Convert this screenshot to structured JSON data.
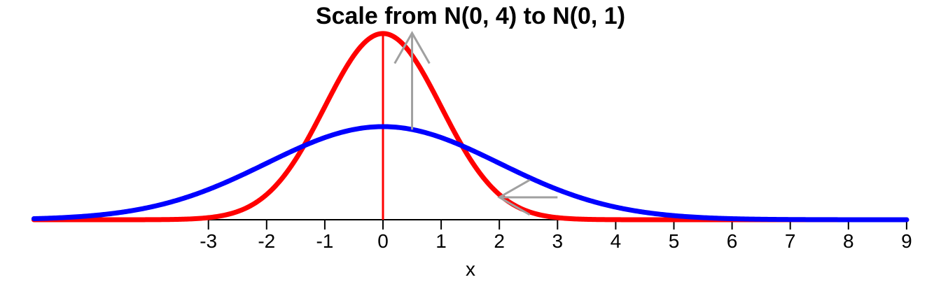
{
  "chart_data": {
    "type": "line",
    "title": "Scale from N(0, 4) to N(0, 1)",
    "xlabel": "x",
    "ylabel": "",
    "xlim": [
      -6,
      9
    ],
    "ylim": [
      0,
      0.4
    ],
    "x_ticks": [
      -3,
      -2,
      -1,
      0,
      1,
      2,
      3,
      4,
      5,
      6,
      7,
      8,
      9
    ],
    "grid": false,
    "series": [
      {
        "name": "N(0, 1)",
        "distribution": "normal",
        "mean": 0,
        "variance": 1,
        "color": "#ff0000"
      },
      {
        "name": "N(0, 4)",
        "distribution": "normal",
        "mean": 0,
        "variance": 4,
        "color": "#0000ff"
      }
    ],
    "reference_line": {
      "x": 0,
      "color": "#ff0000"
    },
    "annotations": [
      {
        "type": "arrow",
        "from": [
          0.5,
          0.193
        ],
        "to": [
          0.5,
          0.4
        ],
        "color": "#a0a0a0"
      },
      {
        "type": "arrow",
        "from": [
          3.0,
          0.048
        ],
        "to": [
          2.0,
          0.048
        ],
        "color": "#a0a0a0"
      }
    ]
  }
}
